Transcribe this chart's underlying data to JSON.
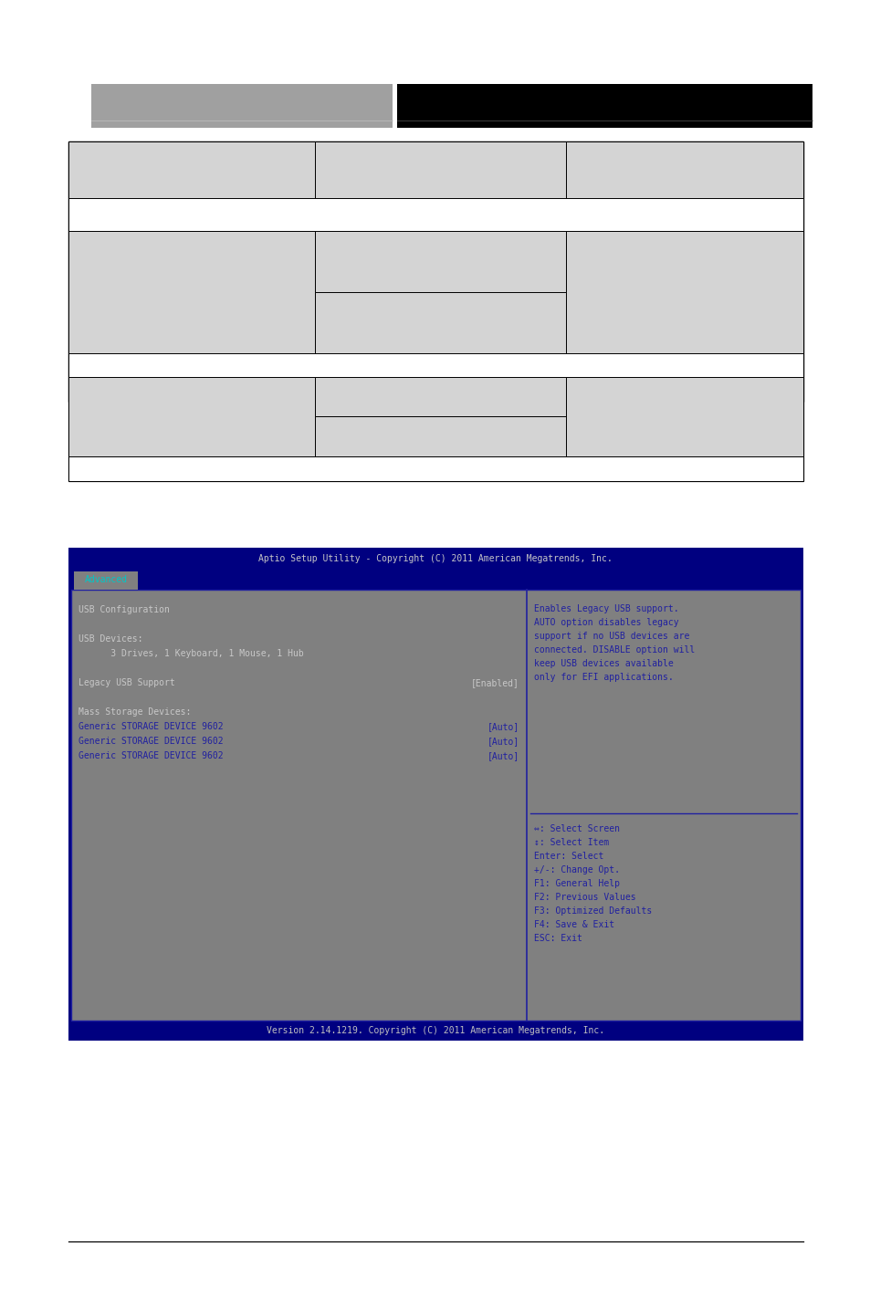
{
  "page_bg": "#ffffff",
  "header_gray": "#a0a0a0",
  "header_black": "#000000",
  "table_bg": "#d4d4d4",
  "table_border": "#000000",
  "table_white": "#ffffff",
  "bios_outer_bg": "#000080",
  "bios_title_bg": "#000080",
  "bios_title_text": "#c8c8c8",
  "bios_tab_bg": "#808080",
  "bios_tab_text": "#00c8c8",
  "bios_main_bg": "#808080",
  "bios_text_blue": "#2020a0",
  "bios_text_white": "#c8c8c8",
  "bios_separator": "#2020a0",
  "bios_footer_bg": "#000080",
  "bios_footer_text": "#c0c0c0",
  "bottom_line": "#000000",
  "title_text": "Aptio Setup Utility - Copyright (C) 2011 American Megatrends, Inc.",
  "tab_text": "Advanced",
  "footer_text": "Version 2.14.1219. Copyright (C) 2011 American Megatrends, Inc.",
  "right_lines": [
    "Enables Legacy USB support.",
    "AUTO option disables legacy",
    "support if no USB devices are",
    "connected. DISABLE option will",
    "keep USB devices available",
    "only for EFI applications."
  ],
  "nav_lines": [
    "⇔: Select Screen",
    "↕: Select Item",
    "Enter: Select",
    "+/-: Change Opt.",
    "F1: General Help",
    "F2: Previous Values",
    "F3: Optimized Defaults",
    "F4: Save & Exit",
    "ESC: Exit"
  ]
}
